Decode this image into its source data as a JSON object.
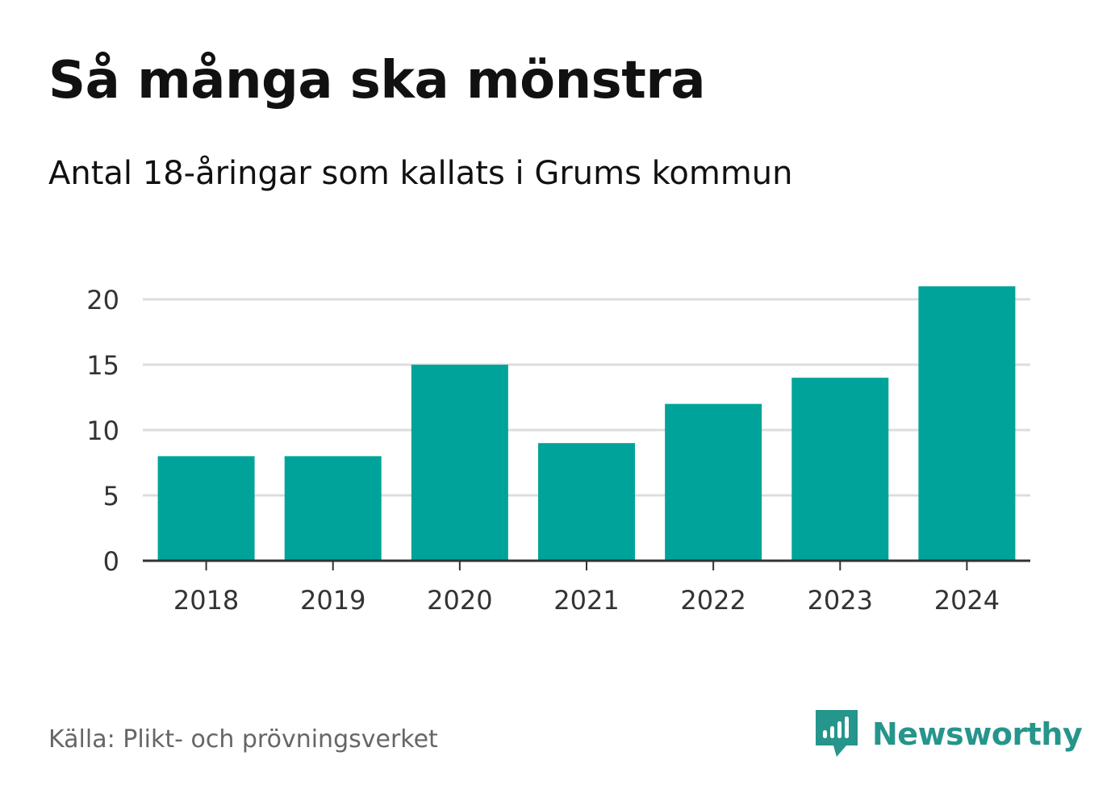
{
  "title": "Så många ska mönstra",
  "subtitle": "Antal 18-åringar som kallats i Grums kommun",
  "source": "Källa: Plikt- och prövningsverket",
  "brand": {
    "name": "Newsworthy",
    "color": "#26958b",
    "icon": "newsworthy-logo-icon"
  },
  "chart_data": {
    "type": "bar",
    "categories": [
      "2018",
      "2019",
      "2020",
      "2021",
      "2022",
      "2023",
      "2024"
    ],
    "values": [
      8,
      8,
      15,
      9,
      12,
      14,
      21
    ],
    "ylim": [
      0,
      20
    ],
    "yticks": [
      0,
      5,
      10,
      15,
      20
    ],
    "grid": true,
    "bar_color": "#00a39a",
    "xlabel": "",
    "ylabel": ""
  }
}
